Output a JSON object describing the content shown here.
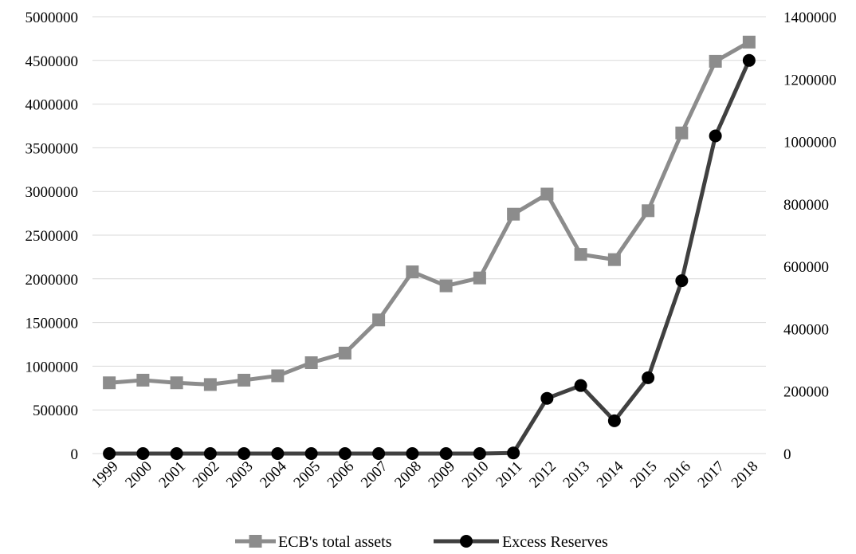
{
  "chart_data": {
    "type": "line",
    "title": "",
    "x": [
      "1999",
      "2000",
      "2001",
      "2002",
      "2003",
      "2004",
      "2005",
      "2006",
      "2007",
      "2008",
      "2009",
      "2010",
      "2011",
      "2012",
      "2013",
      "2014",
      "2015",
      "2016",
      "2017",
      "2018"
    ],
    "y_left": {
      "ylim": [
        0,
        5000000
      ],
      "ticks": [
        "0",
        "500000",
        "1000000",
        "1500000",
        "2000000",
        "2500000",
        "3000000",
        "3500000",
        "4000000",
        "4500000",
        "5000000"
      ]
    },
    "y_right": {
      "ylim": [
        0,
        1400000
      ],
      "ticks": [
        "0",
        "200000",
        "400000",
        "600000",
        "800000",
        "1000000",
        "1200000",
        "1400000"
      ]
    },
    "grid": "horizontal",
    "legend_position": "bottom",
    "series": [
      {
        "name": "ECB's total assets",
        "axis": "left",
        "marker": "square",
        "color": "#8c8c8c",
        "values": [
          810000,
          840000,
          810000,
          790000,
          840000,
          890000,
          1040000,
          1150000,
          1530000,
          2080000,
          1920000,
          2010000,
          2740000,
          2970000,
          2280000,
          2220000,
          2780000,
          3670000,
          4490000,
          4710000
        ]
      },
      {
        "name": "Excess Reserves",
        "axis": "right",
        "marker": "circle",
        "color": "#404040",
        "values": [
          0,
          0,
          0,
          0,
          0,
          0,
          0,
          0,
          0,
          0,
          0,
          0,
          2000,
          177000,
          218000,
          105000,
          243000,
          554000,
          1018000,
          1260000
        ]
      }
    ]
  }
}
